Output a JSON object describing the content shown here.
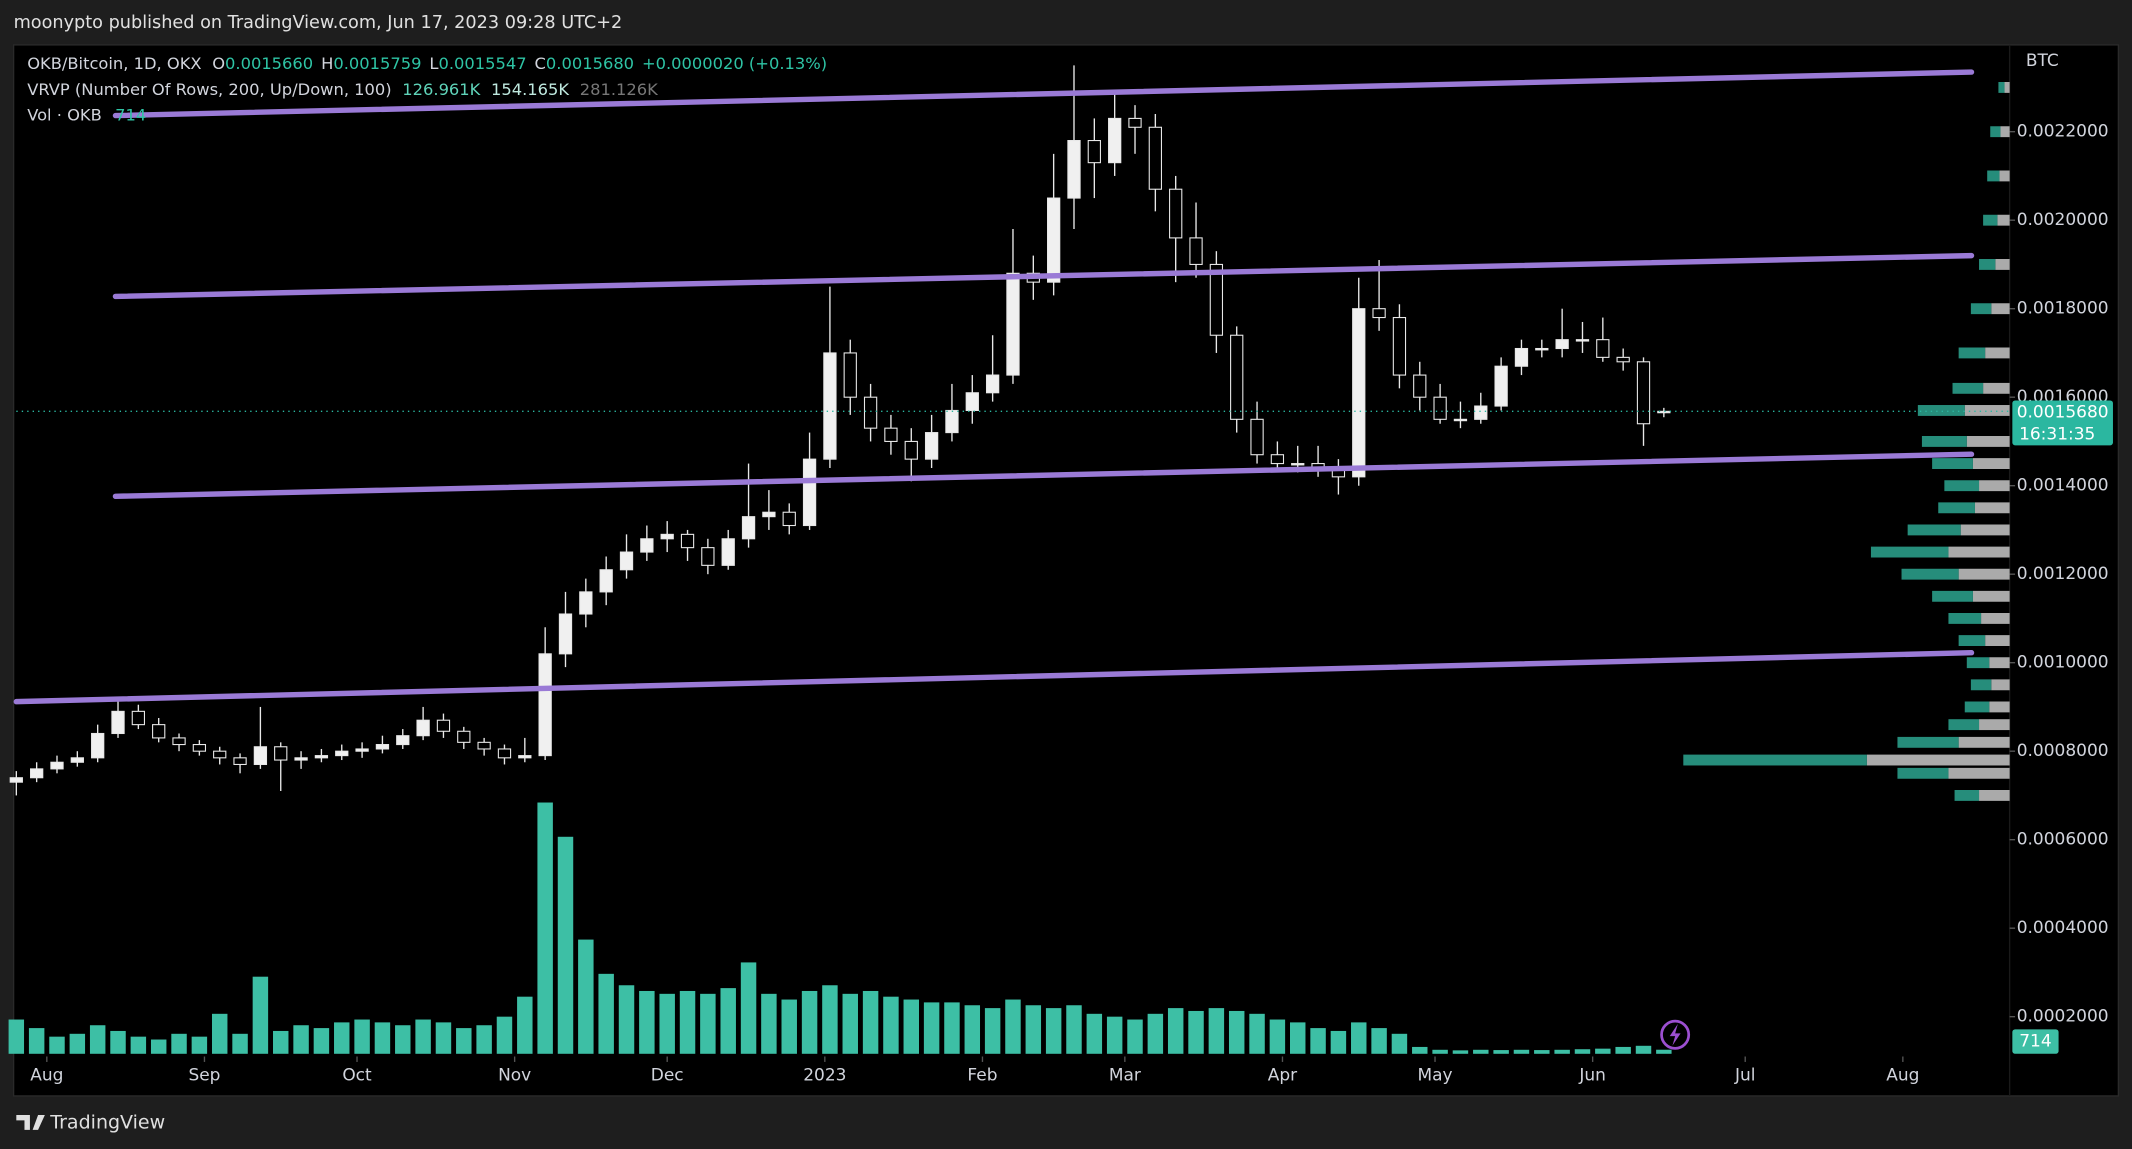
{
  "header": {
    "publisher": "moonypto published on TradingView.com, Jun 17, 2023 09:28 UTC+2"
  },
  "footer": {
    "brand": "TradingView"
  },
  "chart_data": {
    "type": "candlestick",
    "currency": "BTC",
    "legend": {
      "symbol": "OKB/Bitcoin, 1D, OKX",
      "ohlc": [
        {
          "key": "O",
          "value": "0.0015660"
        },
        {
          "key": "H",
          "value": "0.0015759"
        },
        {
          "key": "L",
          "value": "0.0015547"
        },
        {
          "key": "C",
          "value": "0.0015680"
        }
      ],
      "change": "+0.0000020 (+0.13%)",
      "vrvp": "VRVP (Number Of Rows, 200, Up/Down, 100)",
      "vrvp_up": "126.961K",
      "vrvp_down": "154.165K",
      "vrvp_total": "281.126K",
      "vol": "Vol · OKB",
      "countdown": "16:31:35"
    },
    "xlim": [
      -6,
      386
    ],
    "ylim": [
      0.00011,
      0.00239
    ],
    "volume_ylim": [
      0,
      50000
    ],
    "grid": false,
    "up_color": "#f0f0f0",
    "down_color": "#000000",
    "wick_color": "#e8e8e8",
    "volume_color": "#3dbfa5",
    "price_color": "#2bb7a0",
    "xticks": [
      {
        "value": 0,
        "label": "Aug"
      },
      {
        "value": 31,
        "label": "Sep"
      },
      {
        "value": 61,
        "label": "Oct"
      },
      {
        "value": 92,
        "label": "Nov"
      },
      {
        "value": 122,
        "label": "Dec"
      },
      {
        "value": 153,
        "label": "2023"
      },
      {
        "value": 184,
        "label": "Feb"
      },
      {
        "value": 212,
        "label": "Mar"
      },
      {
        "value": 243,
        "label": "Apr"
      },
      {
        "value": 273,
        "label": "May"
      },
      {
        "value": 304,
        "label": "Jun"
      },
      {
        "value": 334,
        "label": "Jul"
      },
      {
        "value": 365,
        "label": "Aug"
      }
    ],
    "yticks": [
      {
        "value": 0.0002,
        "label": "0.0002000"
      },
      {
        "value": 0.0004,
        "label": "0.0004000"
      },
      {
        "value": 0.0006,
        "label": "0.0006000"
      },
      {
        "value": 0.0008,
        "label": "0.0008000"
      },
      {
        "value": 0.001,
        "label": "0.0010000"
      },
      {
        "value": 0.0012,
        "label": "0.0012000"
      },
      {
        "value": 0.0014,
        "label": "0.0014000"
      },
      {
        "value": 0.0016,
        "label": "0.0016000"
      },
      {
        "value": 0.0018,
        "label": "0.0018000"
      },
      {
        "value": 0.002,
        "label": "0.0020000"
      },
      {
        "value": 0.0022,
        "label": "0.0022000"
      }
    ],
    "x": [
      -6,
      -2,
      2,
      6,
      10,
      14,
      18,
      22,
      26,
      30,
      34,
      38,
      42,
      46,
      50,
      54,
      58,
      62,
      66,
      70,
      74,
      78,
      82,
      86,
      90,
      94,
      98,
      102,
      106,
      110,
      114,
      118,
      122,
      126,
      130,
      134,
      138,
      142,
      146,
      150,
      154,
      158,
      162,
      166,
      170,
      174,
      178,
      182,
      186,
      190,
      194,
      198,
      202,
      206,
      210,
      214,
      218,
      222,
      226,
      230,
      234,
      238,
      242,
      246,
      250,
      254,
      258,
      262,
      266,
      270,
      274,
      278,
      282,
      286,
      290,
      294,
      298,
      302,
      306,
      310,
      314,
      318
    ],
    "open": [
      0.00073,
      0.00074,
      0.00076,
      0.000775,
      0.000785,
      0.00084,
      0.00089,
      0.00086,
      0.00083,
      0.000815,
      0.0008,
      0.000785,
      0.00077,
      0.00081,
      0.00078,
      0.000785,
      0.00079,
      0.0008,
      0.000805,
      0.000815,
      0.000835,
      0.00087,
      0.000845,
      0.00082,
      0.000805,
      0.000785,
      0.00079,
      0.00102,
      0.00111,
      0.00116,
      0.00121,
      0.00125,
      0.00128,
      0.00129,
      0.00126,
      0.00122,
      0.00128,
      0.00133,
      0.00134,
      0.00131,
      0.00146,
      0.0017,
      0.0016,
      0.00153,
      0.0015,
      0.00146,
      0.00152,
      0.00157,
      0.00161,
      0.00165,
      0.00188,
      0.00186,
      0.00205,
      0.00218,
      0.00213,
      0.00223,
      0.00221,
      0.00207,
      0.00196,
      0.0019,
      0.00174,
      0.00155,
      0.00147,
      0.00145,
      0.00145,
      0.00144,
      0.00142,
      0.0018,
      0.00178,
      0.00165,
      0.0016,
      0.00155,
      0.00155,
      0.00158,
      0.00167,
      0.00171,
      0.00171,
      0.00173,
      0.00173,
      0.00169,
      0.00168,
      0.001566
    ],
    "high": [
      0.000755,
      0.000775,
      0.00079,
      0.0008,
      0.00086,
      0.00092,
      0.000905,
      0.000875,
      0.00084,
      0.000825,
      0.00081,
      0.000795,
      0.0009,
      0.00082,
      0.0008,
      0.000805,
      0.000815,
      0.00082,
      0.000835,
      0.00085,
      0.0009,
      0.000885,
      0.000855,
      0.00083,
      0.000815,
      0.00083,
      0.00108,
      0.00116,
      0.00119,
      0.00124,
      0.00129,
      0.00131,
      0.00132,
      0.0013,
      0.00128,
      0.0013,
      0.00145,
      0.00139,
      0.00136,
      0.00152,
      0.00185,
      0.00173,
      0.00163,
      0.00156,
      0.00153,
      0.00156,
      0.00163,
      0.00165,
      0.00174,
      0.00198,
      0.00192,
      0.00215,
      0.00235,
      0.00223,
      0.00229,
      0.00226,
      0.00224,
      0.0021,
      0.00204,
      0.00193,
      0.00176,
      0.00159,
      0.0015,
      0.00149,
      0.00149,
      0.00146,
      0.00187,
      0.00191,
      0.00181,
      0.00168,
      0.00163,
      0.00159,
      0.00161,
      0.00169,
      0.00173,
      0.00173,
      0.0018,
      0.00177,
      0.00178,
      0.00171,
      0.00169,
      0.0015759
    ],
    "low": [
      0.0007,
      0.00073,
      0.00075,
      0.000765,
      0.000775,
      0.00083,
      0.00085,
      0.00082,
      0.0008,
      0.00079,
      0.00077,
      0.00075,
      0.00076,
      0.00071,
      0.00076,
      0.000775,
      0.00078,
      0.000785,
      0.000795,
      0.000805,
      0.000825,
      0.00083,
      0.000805,
      0.00079,
      0.00077,
      0.000775,
      0.00078,
      0.00099,
      0.00108,
      0.00113,
      0.00119,
      0.00123,
      0.00125,
      0.00123,
      0.0012,
      0.00121,
      0.00126,
      0.0013,
      0.00129,
      0.0013,
      0.00144,
      0.00156,
      0.0015,
      0.00147,
      0.00141,
      0.00144,
      0.0015,
      0.00154,
      0.00159,
      0.00163,
      0.00182,
      0.00183,
      0.00198,
      0.00205,
      0.0021,
      0.00215,
      0.00202,
      0.00186,
      0.00187,
      0.0017,
      0.00152,
      0.00145,
      0.00143,
      0.00143,
      0.00142,
      0.00138,
      0.0014,
      0.00175,
      0.00162,
      0.00157,
      0.00154,
      0.00153,
      0.00154,
      0.00157,
      0.00165,
      0.00169,
      0.00169,
      0.0017,
      0.00168,
      0.00166,
      0.00149,
      0.0015547
    ],
    "close": [
      0.00074,
      0.00076,
      0.000775,
      0.000785,
      0.00084,
      0.00089,
      0.00086,
      0.00083,
      0.000815,
      0.0008,
      0.000785,
      0.00077,
      0.00081,
      0.00078,
      0.000785,
      0.00079,
      0.0008,
      0.000805,
      0.000815,
      0.000835,
      0.00087,
      0.000845,
      0.00082,
      0.000805,
      0.000785,
      0.00079,
      0.00102,
      0.00111,
      0.00116,
      0.00121,
      0.00125,
      0.00128,
      0.00129,
      0.00126,
      0.00122,
      0.00128,
      0.00133,
      0.00134,
      0.00131,
      0.00146,
      0.0017,
      0.0016,
      0.00153,
      0.0015,
      0.00146,
      0.00152,
      0.00157,
      0.00161,
      0.00165,
      0.00188,
      0.00186,
      0.00205,
      0.00218,
      0.00213,
      0.00223,
      0.00221,
      0.00207,
      0.00196,
      0.0019,
      0.00174,
      0.00155,
      0.00147,
      0.00145,
      0.00145,
      0.00144,
      0.00142,
      0.0018,
      0.00178,
      0.00165,
      0.0016,
      0.00155,
      0.00155,
      0.00158,
      0.00167,
      0.00171,
      0.00171,
      0.00173,
      0.00173,
      0.00169,
      0.00168,
      0.00154,
      0.001568
    ],
    "volume": [
      6000,
      4500,
      3000,
      3500,
      5000,
      4000,
      3000,
      2500,
      3500,
      3000,
      7000,
      3500,
      13500,
      4000,
      5000,
      4500,
      5500,
      6000,
      5500,
      5000,
      6000,
      5500,
      4500,
      5000,
      6500,
      10000,
      44000,
      38000,
      20000,
      14000,
      12000,
      11000,
      10500,
      11000,
      10500,
      11500,
      16000,
      10500,
      9500,
      11000,
      12000,
      10500,
      11000,
      10000,
      9500,
      9000,
      9000,
      8500,
      8000,
      9500,
      8500,
      8000,
      8500,
      7000,
      6500,
      6000,
      7000,
      8000,
      7500,
      8000,
      7500,
      7000,
      6000,
      5500,
      4500,
      4000,
      5500,
      4500,
      3500,
      1200,
      700,
      600,
      700,
      650,
      700,
      650,
      700,
      800,
      900,
      1200,
      1400,
      714
    ],
    "trendlines": [
      {
        "color": "#9a7ad6",
        "x": [
          13.5,
          378.5
        ],
        "y": [
          0.0022364,
          0.0023347
        ]
      },
      {
        "color": "#9a7ad6",
        "x": [
          13.5,
          378.5
        ],
        "y": [
          0.0018277,
          0.0019199
        ]
      },
      {
        "color": "#9a7ad6",
        "x": [
          13.5,
          378.5
        ],
        "y": [
          0.001376,
          0.0014712
        ]
      },
      {
        "color": "#9a7ad6",
        "x": [
          -6,
          378.5
        ],
        "y": [
          0.000912,
          0.0010226
        ]
      }
    ],
    "profile": {
      "up_color": "#2a9c88",
      "down_color": "#c8c8c8",
      "prices": [
        0.0007,
        0.00075,
        0.00078,
        0.00082,
        0.00086,
        0.0009,
        0.00095,
        0.001,
        0.00105,
        0.0011,
        0.00115,
        0.0012,
        0.00125,
        0.0013,
        0.00135,
        0.0014,
        0.00145,
        0.0015,
        0.00157,
        0.00162,
        0.0017,
        0.0018,
        0.0019,
        0.002,
        0.0021,
        0.0022,
        0.0023
      ],
      "up": [
        1200,
        2500,
        9000,
        3000,
        1500,
        1200,
        1000,
        1100,
        1300,
        1600,
        2000,
        2800,
        3800,
        2600,
        1800,
        1700,
        2000,
        2200,
        2300,
        1500,
        1300,
        1000,
        800,
        700,
        600,
        500,
        300
      ],
      "down": [
        1500,
        3000,
        7000,
        2500,
        1500,
        1000,
        900,
        1000,
        1200,
        1400,
        1800,
        2500,
        3000,
        2400,
        1700,
        1500,
        1800,
        2100,
        2200,
        1300,
        1200,
        900,
        700,
        600,
        500,
        450,
        250
      ]
    }
  }
}
